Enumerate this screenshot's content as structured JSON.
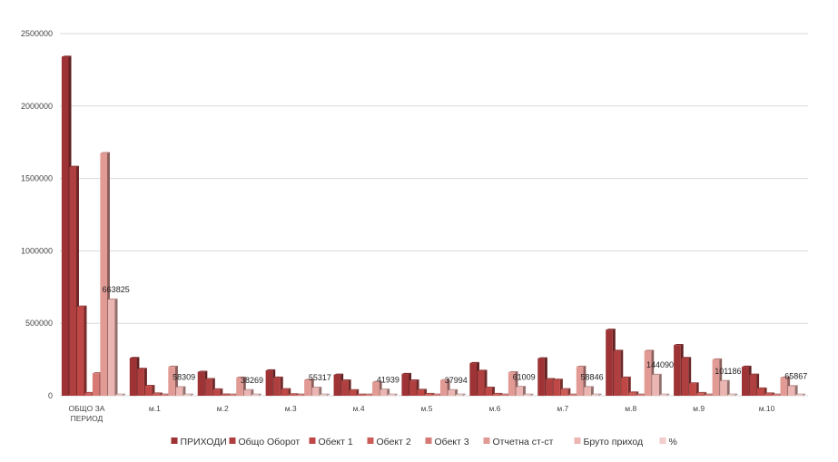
{
  "chart_data": {
    "type": "bar",
    "categories": [
      "ОБЩО ЗА ПЕРИОД",
      "м.1",
      "м.2",
      "м.3",
      "м.4",
      "м.5",
      "м.6",
      "м.7",
      "м.8",
      "м.9",
      "м.10"
    ],
    "series": [
      {
        "name": "ПРИХОДИ",
        "color": "#9e3336",
        "values": [
          2340000,
          260000,
          165000,
          175000,
          145000,
          150000,
          225000,
          258000,
          455000,
          350000,
          200000
        ]
      },
      {
        "name": "Общо Оборот",
        "color": "#b0403f",
        "values": [
          1580000,
          185000,
          115000,
          125000,
          105000,
          105000,
          172000,
          115000,
          310000,
          260000,
          145000
        ]
      },
      {
        "name": "Обект 1",
        "color": "#bf4846",
        "values": [
          615000,
          68000,
          43000,
          45000,
          38000,
          40000,
          55000,
          110000,
          125000,
          85000,
          50000
        ]
      },
      {
        "name": "Обект 2",
        "color": "#cc5c58",
        "values": [
          18000,
          15000,
          8000,
          10000,
          7000,
          12000,
          12000,
          45000,
          22000,
          18000,
          15000
        ]
      },
      {
        "name": "Обект 3",
        "color": "#d77a75",
        "values": [
          155000,
          0,
          0,
          0,
          0,
          0,
          0,
          0,
          0,
          0,
          0
        ]
      },
      {
        "name": "Отчетна ст-ст",
        "color": "#e29a95",
        "values": [
          1675000,
          200000,
          125000,
          110000,
          95000,
          108000,
          162000,
          200000,
          310000,
          250000,
          125000
        ]
      },
      {
        "name": "Бруто приход",
        "color": "#ebb5b1",
        "values": [
          663825,
          58309,
          38269,
          55317,
          41939,
          37994,
          61009,
          58846,
          144090,
          101186,
          65867
        ]
      },
      {
        "name": "%",
        "color": "#f1cdcb",
        "values": [
          0,
          0,
          0,
          0,
          0,
          0,
          0,
          0,
          0,
          0,
          0
        ]
      }
    ],
    "data_labels": {
      "series_index": 6,
      "labels": [
        "663825",
        "58309",
        "38269",
        "55317",
        "41939",
        "37994",
        "61009",
        "58846",
        "144090",
        "101186",
        "65867"
      ]
    },
    "y_ticks": [
      "0",
      "500000",
      "1000000",
      "1500000",
      "2000000",
      "2500000"
    ],
    "ylim": [
      0,
      2500000
    ],
    "grid": true,
    "legend_position": "bottom",
    "title": "",
    "xlabel": "",
    "ylabel": ""
  }
}
